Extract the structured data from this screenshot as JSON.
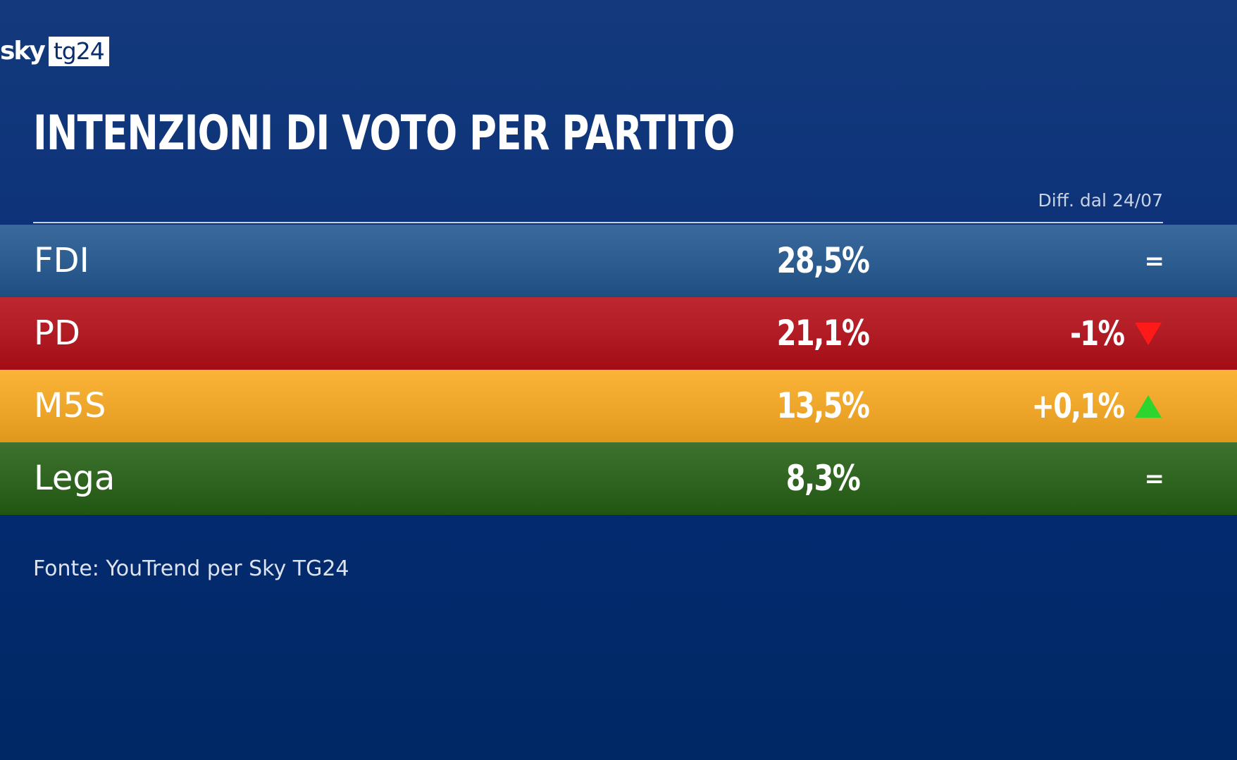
{
  "brand": {
    "logo_word": "sky",
    "logo_box": "tg24"
  },
  "title": "INTENZIONI DI VOTO PER PARTITO",
  "diff_header": "Diff. dal 24/07",
  "source": "Fonte: YouTrend per Sky TG24",
  "colors": {
    "background": "#0a2f74",
    "up": "#2fd52f",
    "down": "#ff1a1a"
  },
  "chart_data": {
    "type": "table",
    "title": "INTENZIONI DI VOTO PER PARTITO",
    "columns": [
      "",
      "",
      "Diff. dal 24/07"
    ],
    "rows": [
      {
        "party": "FDI",
        "value": 28.5,
        "value_label": "28,5%",
        "change_label": "=",
        "trend": "equal",
        "color": "#2c5c8f"
      },
      {
        "party": "PD",
        "value": 21.1,
        "value_label": "21,1%",
        "change_label": "-1%",
        "trend": "down",
        "color": "#b01a22"
      },
      {
        "party": "M5S",
        "value": 13.5,
        "value_label": "13,5%",
        "change_label": "+0,1%",
        "trend": "up",
        "color": "#eea62a"
      },
      {
        "party": "Lega",
        "value": 8.3,
        "value_label": "8,3%",
        "change_label": "=",
        "trend": "equal",
        "color": "#2e6420"
      }
    ]
  }
}
